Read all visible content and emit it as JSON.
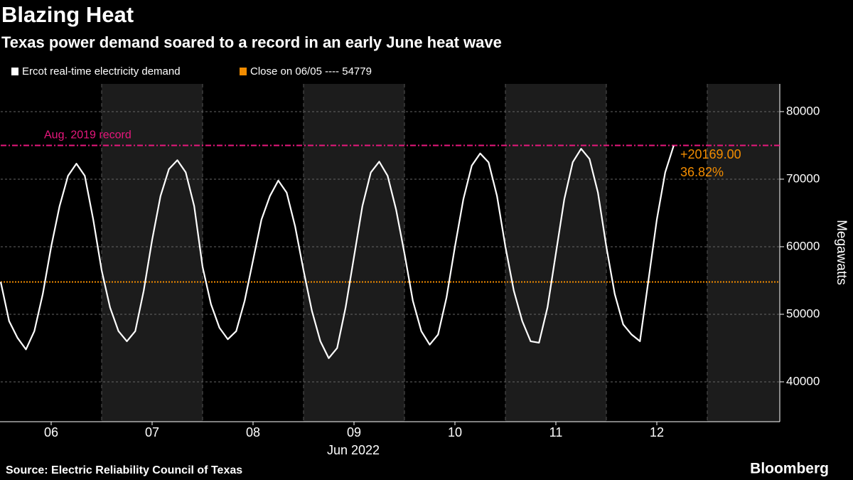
{
  "chart_data": {
    "type": "line",
    "title": "Blazing Heat",
    "subtitle": "Texas power demand soared to a record in an early June heat wave",
    "source": "Source: Electric Reliability Council of Texas",
    "brand": "Bloomberg",
    "y_label": "Megawatts",
    "x_label": "Jun 2022",
    "categories": [
      null,
      null,
      null,
      null,
      null,
      null,
      "06",
      null,
      null,
      null,
      null,
      null,
      null,
      null,
      null,
      null,
      null,
      null,
      "07",
      null,
      null,
      null,
      null,
      null,
      null,
      null,
      null,
      null,
      null,
      null,
      "08",
      null,
      null,
      null,
      null,
      null,
      null,
      null,
      null,
      null,
      null,
      null,
      "09",
      null,
      null,
      null,
      null,
      null,
      null,
      null,
      null,
      null,
      null,
      null,
      "10",
      null,
      null,
      null,
      null,
      null,
      null,
      null,
      null,
      null,
      null,
      null,
      "11",
      null,
      null,
      null,
      null,
      null,
      null,
      null,
      null,
      null,
      null,
      null,
      "12",
      null,
      null,
      null,
      null,
      null,
      null,
      null,
      null,
      null,
      null,
      null,
      null,
      null,
      null
    ],
    "series": [
      {
        "name": "Ercot real-time electricity demand",
        "color": "#ffffff",
        "values": [
          54800,
          49000,
          46500,
          44800,
          47500,
          53000,
          60000,
          66000,
          70500,
          72300,
          70500,
          64000,
          56500,
          51000,
          47500,
          46000,
          47500,
          53500,
          61000,
          67500,
          71500,
          72800,
          71000,
          66000,
          57000,
          51500,
          48000,
          46300,
          47500,
          52000,
          58000,
          64000,
          67500,
          69800,
          68000,
          63000,
          56500,
          50500,
          46000,
          43500,
          45000,
          51000,
          58500,
          66000,
          71000,
          72600,
          70500,
          65500,
          59000,
          52000,
          47500,
          45500,
          47000,
          52500,
          60000,
          67000,
          72000,
          73800,
          72500,
          67500,
          60000,
          53500,
          49000,
          46000,
          45800,
          51000,
          59000,
          67000,
          72500,
          74500,
          73000,
          68000,
          60000,
          53000,
          48500,
          47000,
          46000,
          55000,
          64000,
          71000,
          74948,
          null,
          null,
          null,
          null,
          null,
          null,
          null,
          null,
          null,
          null,
          null,
          null
        ]
      }
    ],
    "reference_lines": [
      {
        "name": "Aug. 2019 record",
        "value": 75000,
        "color": "#e8177d"
      },
      {
        "name": "Close on 06/05 ---- 54779",
        "value": 54779,
        "color": "#f28c00"
      }
    ],
    "annotations": [
      "+20169.00",
      "36.82%"
    ],
    "annotation_color": "#f28c00",
    "ylim": [
      34100,
      84100
    ],
    "yticks": [
      40000,
      50000,
      60000,
      70000,
      80000
    ],
    "grid": true
  }
}
